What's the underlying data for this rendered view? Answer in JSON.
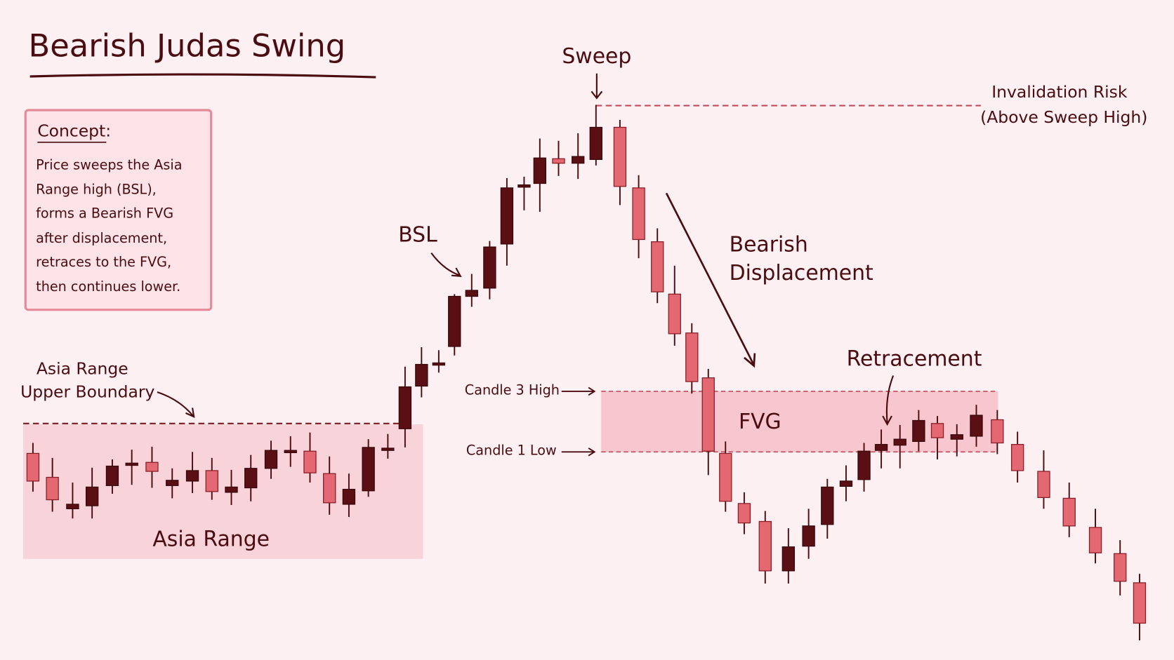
{
  "title": "Bearish Judas Swing",
  "concept": {
    "heading": "Concept:",
    "lines": [
      "Price sweeps the Asia",
      "Range high (BSL),",
      "forms a Bearish FVG",
      "after displacement,",
      "retraces to the FVG,",
      "then continues lower."
    ]
  },
  "labels": {
    "sweep": "Sweep",
    "invalidation_risk": "Invalidation Risk",
    "above_sweep_high": "(Above Sweep High)",
    "bsl": "BSL",
    "bearish": "Bearish",
    "displacement": "Displacement",
    "asia_range": "Asia Range",
    "upper_boundary": "Upper Boundary",
    "asia_range_zone": "Asia Range",
    "candle3_high": "Candle 3 High",
    "candle1_low": "Candle 1 Low",
    "fvg": "FVG",
    "retracement": "Retracement"
  }
}
